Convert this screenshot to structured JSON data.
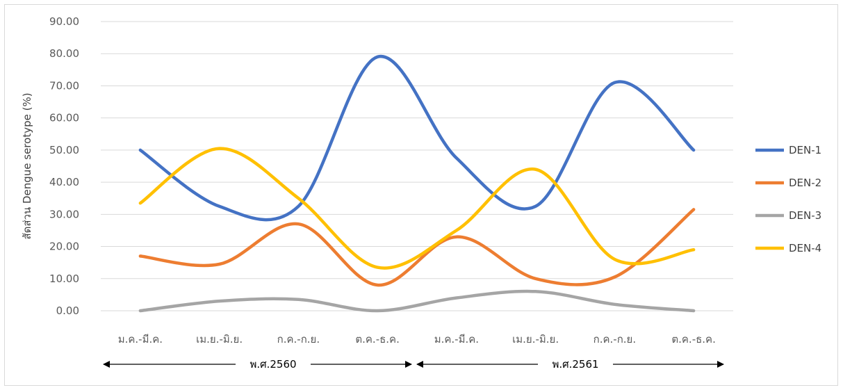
{
  "chart_data": {
    "type": "line",
    "smooth": true,
    "title": "",
    "xlabel": "",
    "ylabel": "สัดส่วน Dengue serotype (%)",
    "ylim": [
      0,
      90
    ],
    "yticks": [
      "0.00",
      "10.00",
      "20.00",
      "30.00",
      "40.00",
      "50.00",
      "60.00",
      "70.00",
      "80.00",
      "90.00"
    ],
    "categories": [
      "ม.ค.-มี.ค.",
      "เม.ย.-มิ.ย.",
      "ก.ค.-ก.ย.",
      "ต.ค.-ธ.ค.",
      "ม.ค.-มี.ค.",
      "เม.ย.-มิ.ย.",
      "ก.ค.-ก.ย.",
      "ต.ค.-ธ.ค."
    ],
    "groups": [
      {
        "label": "พ.ศ.2560",
        "span": [
          0,
          3
        ]
      },
      {
        "label": "พ.ศ.2561",
        "span": [
          4,
          7
        ]
      }
    ],
    "legend_position": "right",
    "grid": "horizontal",
    "series": [
      {
        "name": "DEN-1",
        "color": "#4472C4",
        "values": [
          50,
          32.5,
          32.5,
          79,
          47.5,
          32.5,
          71,
          50
        ]
      },
      {
        "name": "DEN-2",
        "color": "#ED7D31",
        "values": [
          17,
          14.5,
          27,
          8,
          23,
          10,
          10.5,
          31.5
        ]
      },
      {
        "name": "DEN-3",
        "color": "#A5A5A5",
        "values": [
          0,
          3,
          3.5,
          0,
          4,
          6,
          2,
          0
        ]
      },
      {
        "name": "DEN-4",
        "color": "#FFC000",
        "values": [
          33.5,
          50.5,
          35,
          13.5,
          25,
          44,
          16,
          19
        ]
      }
    ]
  }
}
